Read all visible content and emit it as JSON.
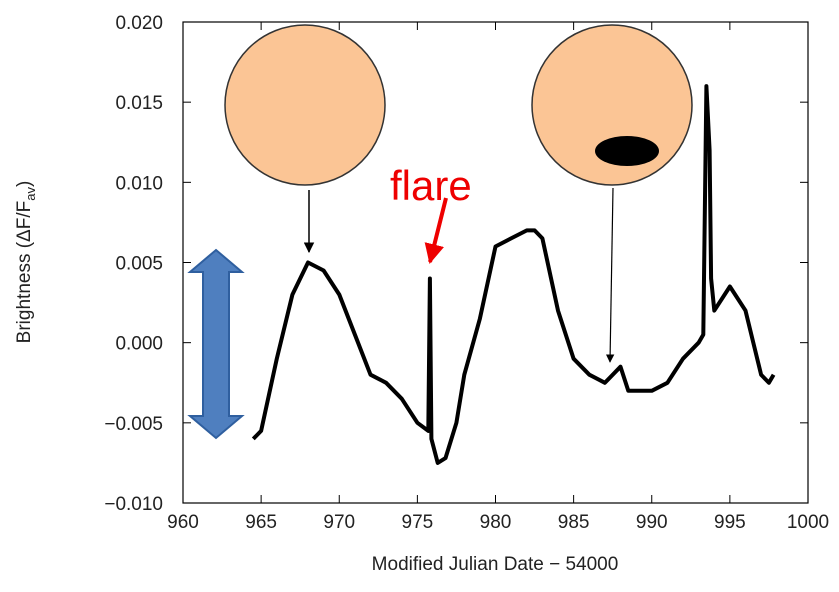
{
  "chart_data": {
    "type": "line",
    "xlabel": "Modified Julian Date − 54000",
    "ylabel": [
      "Brightness (ΔF/F",
      "av",
      ")"
    ],
    "annotation": "flare",
    "xlim": [
      960,
      1000
    ],
    "xticks": [
      960,
      965,
      970,
      975,
      980,
      985,
      990,
      995,
      1000
    ],
    "ylim": [
      -0.01,
      0.02
    ],
    "yticks": [
      {
        "value": -0.01,
        "label": "−0.010"
      },
      {
        "value": -0.005,
        "label": "−0.005"
      },
      {
        "value": 0,
        "label": "0.000"
      },
      0.005,
      {
        "value": 0.01,
        "label": "0.010"
      },
      0.015,
      {
        "value": 0.02,
        "label": "0.020"
      }
    ],
    "color": "#000000",
    "x": [
      964.5,
      965,
      966,
      967,
      968,
      969,
      970,
      971,
      972,
      973,
      974,
      975,
      975.7,
      975.8,
      975.9,
      976.3,
      976.8,
      977.5,
      978,
      979,
      980,
      981,
      982,
      982.5,
      983,
      984,
      985,
      986,
      987,
      987.5,
      988,
      988.5,
      989,
      990,
      991,
      992,
      993,
      993.3,
      993.5,
      993.7,
      993.8,
      994,
      995,
      996,
      996.5,
      997,
      997.5,
      997.8
    ],
    "values": [
      -0.006,
      -0.0055,
      -0.001,
      0.003,
      0.005,
      0.0045,
      0.003,
      0.0005,
      -0.002,
      -0.0025,
      -0.0035,
      -0.005,
      -0.0055,
      0.004,
      -0.006,
      -0.0075,
      -0.0072,
      -0.005,
      -0.002,
      0.0015,
      0.006,
      0.0065,
      0.007,
      0.007,
      0.0065,
      0.002,
      -0.001,
      -0.002,
      -0.0025,
      -0.002,
      -0.0015,
      -0.003,
      -0.003,
      -0.003,
      -0.0025,
      -0.001,
      0.0,
      0.0005,
      0.016,
      0.012,
      0.004,
      0.002,
      0.0035,
      0.002,
      0.0,
      -0.002,
      -0.0025,
      -0.002
    ]
  }
}
